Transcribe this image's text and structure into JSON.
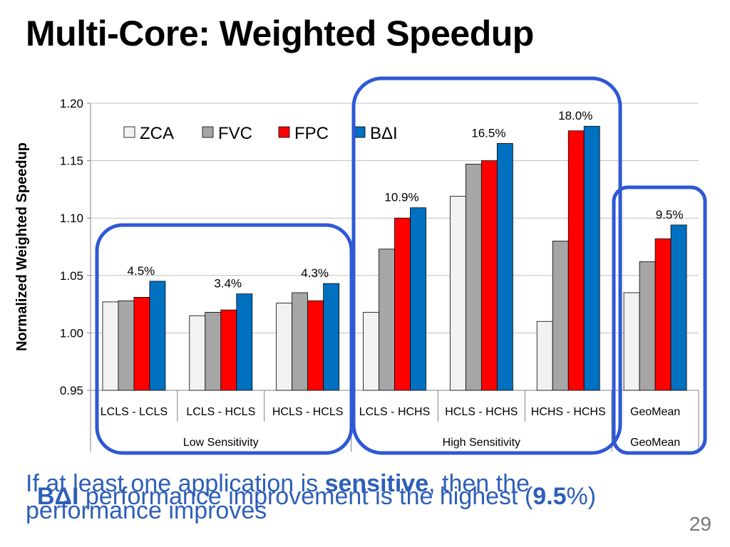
{
  "slide": {
    "title": "Multi-Core: Weighted Speedup",
    "caption_a_pre": "If at least one application is ",
    "caption_a_bold": "sensitive",
    "caption_a_post": ", then the",
    "caption_a_line2": "performance improves",
    "caption_b_bold": "BΔI",
    "caption_b_pre": " performance improvement is the highest (",
    "caption_b_value": "9.5",
    "caption_b_post": "%)",
    "number": "29"
  },
  "colors": {
    "ZCA": "#f2f2f2",
    "FVC": "#a6a6a6",
    "FPC": "#ff0000",
    "BΔI": "#0070c0",
    "highlight_box": "#2e58d6"
  },
  "chart_data": {
    "type": "bar",
    "title": "",
    "ylabel": "Normalized Weighted Speedup",
    "xlabel": "",
    "ylim": [
      0.95,
      1.2
    ],
    "yticks": [
      "0.95",
      "1.00",
      "1.05",
      "1.10",
      "1.15",
      "1.20"
    ],
    "legend_position": "top-left",
    "categories": [
      "LCLS - LCLS",
      "LCLS - HCLS",
      "HCLS - HCLS",
      "LCLS - HCHS",
      "HCLS - HCHS",
      "HCHS - HCHS",
      "GeoMean"
    ],
    "category_groups": [
      {
        "label": "Low Sensitivity",
        "categories": [
          "LCLS - LCLS",
          "LCLS - HCLS",
          "HCLS - HCLS"
        ]
      },
      {
        "label": "High Sensitivity",
        "categories": [
          "LCLS - HCHS",
          "HCLS - HCHS",
          "HCHS - HCHS"
        ]
      },
      {
        "label": "GeoMean",
        "categories": [
          "GeoMean"
        ]
      }
    ],
    "series": [
      {
        "name": "ZCA",
        "values": [
          1.027,
          1.015,
          1.026,
          1.018,
          1.119,
          1.01,
          1.035
        ]
      },
      {
        "name": "FVC",
        "values": [
          1.028,
          1.018,
          1.035,
          1.073,
          1.147,
          1.08,
          1.062
        ]
      },
      {
        "name": "FPC",
        "values": [
          1.031,
          1.02,
          1.028,
          1.1,
          1.15,
          1.176,
          1.082
        ]
      },
      {
        "name": "BΔI",
        "values": [
          1.045,
          1.034,
          1.043,
          1.109,
          1.165,
          1.18,
          1.094
        ]
      }
    ],
    "annotations": [
      "4.5%",
      "3.4%",
      "4.3%",
      "10.9%",
      "16.5%",
      "18.0%",
      "9.5%"
    ],
    "grid": true
  }
}
